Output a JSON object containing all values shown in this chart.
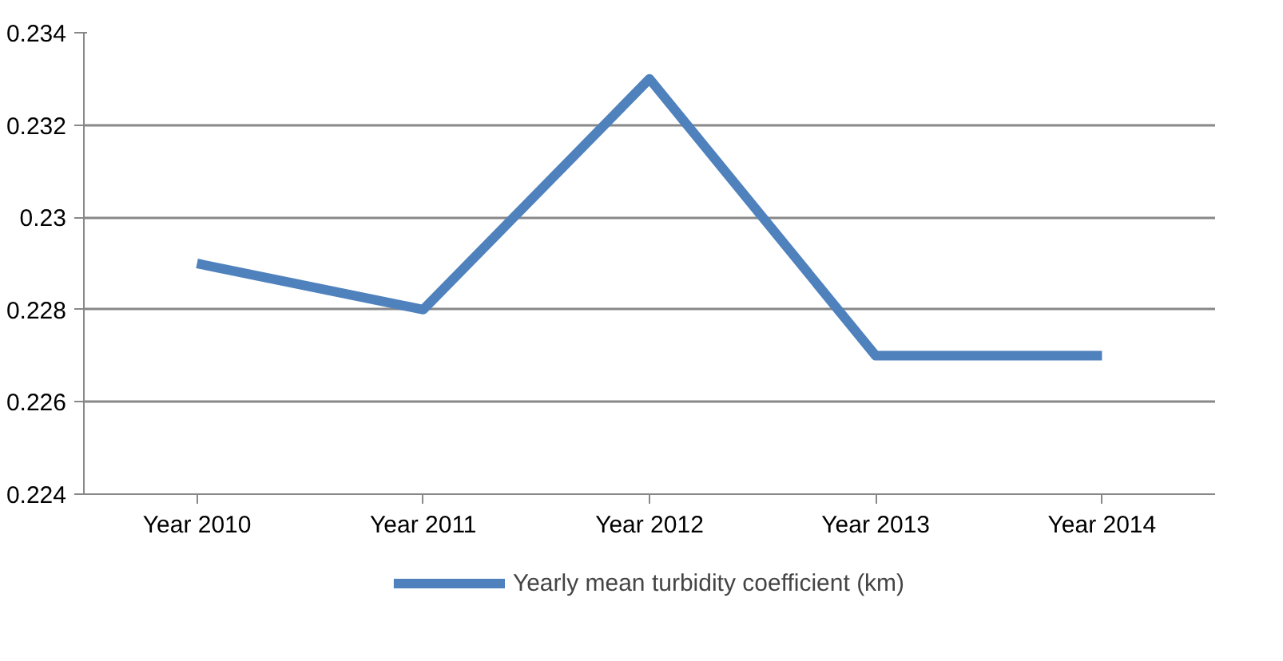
{
  "chart_data": {
    "type": "line",
    "categories": [
      "Year 2010",
      "Year 2011",
      "Year 2012",
      "Year 2013",
      "Year 2014"
    ],
    "series": [
      {
        "name": "Yearly mean turbidity coefficient (km)",
        "color": "#4f81bd",
        "values": [
          0.229,
          0.228,
          0.233,
          0.227,
          0.227
        ]
      }
    ],
    "ylim": [
      0.224,
      0.234
    ],
    "yticks": [
      0.224,
      0.226,
      0.228,
      0.23,
      0.232,
      0.234
    ],
    "grid": "y",
    "legend": "bottom",
    "marker": "none"
  }
}
